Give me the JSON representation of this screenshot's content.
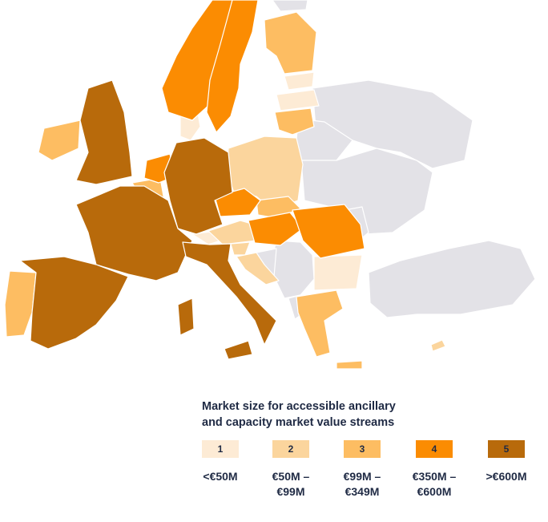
{
  "colors": {
    "no_data": "#e3e2e7",
    "tier_1": "#fdebd5",
    "tier_2": "#fbd59d",
    "tier_3": "#fdbd62",
    "tier_4": "#fb8c02",
    "tier_5": "#b86a0b"
  },
  "legend": {
    "title_line1": "Market size for accessible ancillary",
    "title_line2": "and capacity market value streams",
    "tiers": [
      {
        "label": "1",
        "range_line1": "<€50M",
        "range_line2": ""
      },
      {
        "label": "2",
        "range_line1": "€50M –",
        "range_line2": "€99M"
      },
      {
        "label": "3",
        "range_line1": "€99M –",
        "range_line2": "€349M"
      },
      {
        "label": "4",
        "range_line1": "€350M –",
        "range_line2": "€600M"
      },
      {
        "label": "5",
        "range_line1": ">€600M",
        "range_line2": ""
      }
    ]
  },
  "countries": [
    {
      "name": "Iceland",
      "tier": 0
    },
    {
      "name": "United Kingdom",
      "tier": 5
    },
    {
      "name": "Ireland",
      "tier": 3
    },
    {
      "name": "Norway",
      "tier": 4
    },
    {
      "name": "Sweden",
      "tier": 4
    },
    {
      "name": "Finland",
      "tier": 3
    },
    {
      "name": "Denmark",
      "tier": 1
    },
    {
      "name": "Estonia",
      "tier": 1
    },
    {
      "name": "Latvia",
      "tier": 1
    },
    {
      "name": "Lithuania",
      "tier": 3
    },
    {
      "name": "Russia",
      "tier": 0
    },
    {
      "name": "Belarus",
      "tier": 0
    },
    {
      "name": "Ukraine",
      "tier": 0
    },
    {
      "name": "Moldova",
      "tier": 0
    },
    {
      "name": "Turkey",
      "tier": 0
    },
    {
      "name": "Netherlands",
      "tier": 4
    },
    {
      "name": "Belgium",
      "tier": 3
    },
    {
      "name": "Germany",
      "tier": 5
    },
    {
      "name": "Poland",
      "tier": 2
    },
    {
      "name": "Czech Republic",
      "tier": 4
    },
    {
      "name": "Slovakia",
      "tier": 3
    },
    {
      "name": "Austria",
      "tier": 2
    },
    {
      "name": "Switzerland",
      "tier": 1
    },
    {
      "name": "France",
      "tier": 5
    },
    {
      "name": "Spain",
      "tier": 5
    },
    {
      "name": "Portugal",
      "tier": 3
    },
    {
      "name": "Italy",
      "tier": 5
    },
    {
      "name": "Slovenia",
      "tier": 2
    },
    {
      "name": "Croatia",
      "tier": 2
    },
    {
      "name": "Hungary",
      "tier": 4
    },
    {
      "name": "Romania",
      "tier": 4
    },
    {
      "name": "Bulgaria",
      "tier": 1
    },
    {
      "name": "Serbia",
      "tier": 0
    },
    {
      "name": "Bosnia and Herzegovina",
      "tier": 0
    },
    {
      "name": "Montenegro",
      "tier": 0
    },
    {
      "name": "Albania",
      "tier": 0
    },
    {
      "name": "North Macedonia",
      "tier": 0
    },
    {
      "name": "Greece",
      "tier": 3
    },
    {
      "name": "Cyprus",
      "tier": 2
    }
  ]
}
